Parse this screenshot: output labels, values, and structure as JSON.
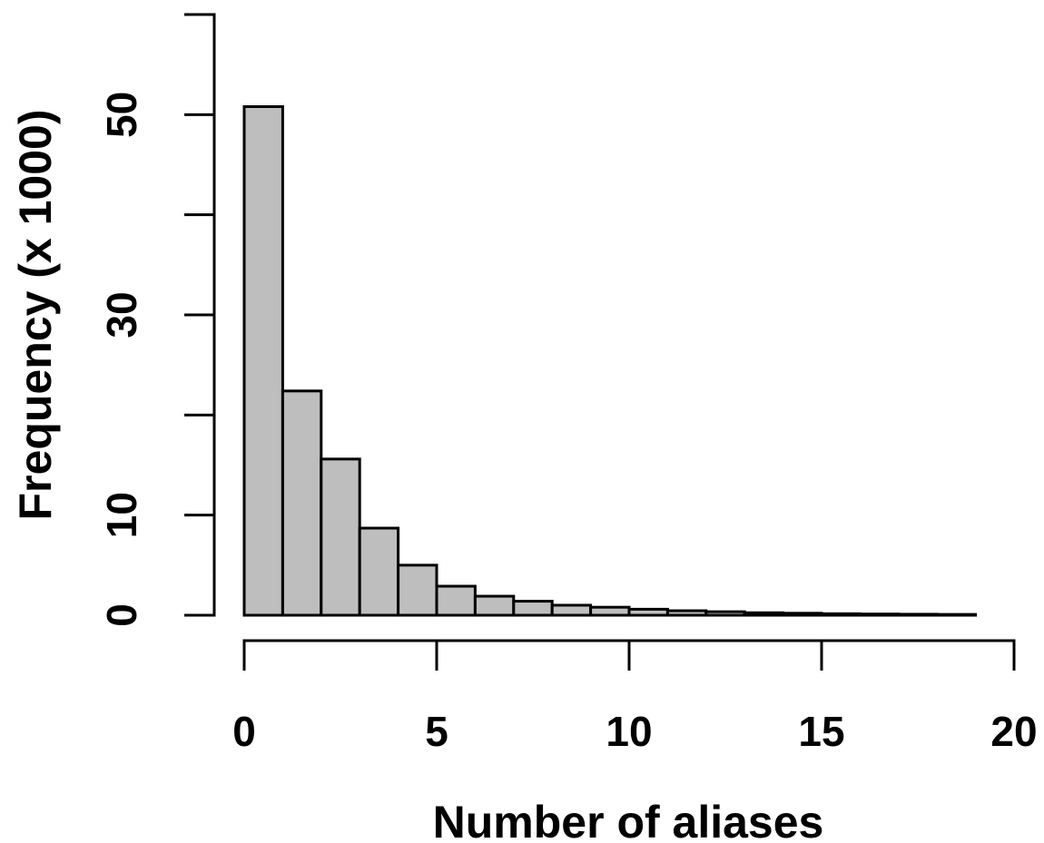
{
  "chart_data": {
    "type": "bar",
    "subtype": "histogram",
    "xlabel": "Number of aliases",
    "ylabel": "Frequency (x 1000)",
    "bin_edges": [
      0,
      1,
      2,
      3,
      4,
      5,
      6,
      7,
      8,
      9,
      10,
      11,
      12,
      13,
      14,
      15,
      16,
      17,
      18,
      19
    ],
    "values": [
      50.8,
      22.4,
      15.6,
      8.7,
      5.0,
      2.9,
      1.9,
      1.4,
      1.0,
      0.8,
      0.6,
      0.45,
      0.35,
      0.25,
      0.2,
      0.15,
      0.12,
      0.1,
      0.08
    ],
    "xlim": [
      0,
      20
    ],
    "ylim": [
      0,
      60
    ],
    "x_ticks": [
      0,
      5,
      10,
      15,
      20
    ],
    "x_tick_labels": [
      "0",
      "5",
      "10",
      "15",
      "20"
    ],
    "y_ticks": [
      0,
      10,
      20,
      30,
      40,
      50,
      60
    ],
    "y_tick_labels": [
      "0",
      "10",
      "",
      "30",
      "",
      "50",
      ""
    ],
    "bar_color": "#bebebe",
    "grid": false,
    "legend": false
  }
}
